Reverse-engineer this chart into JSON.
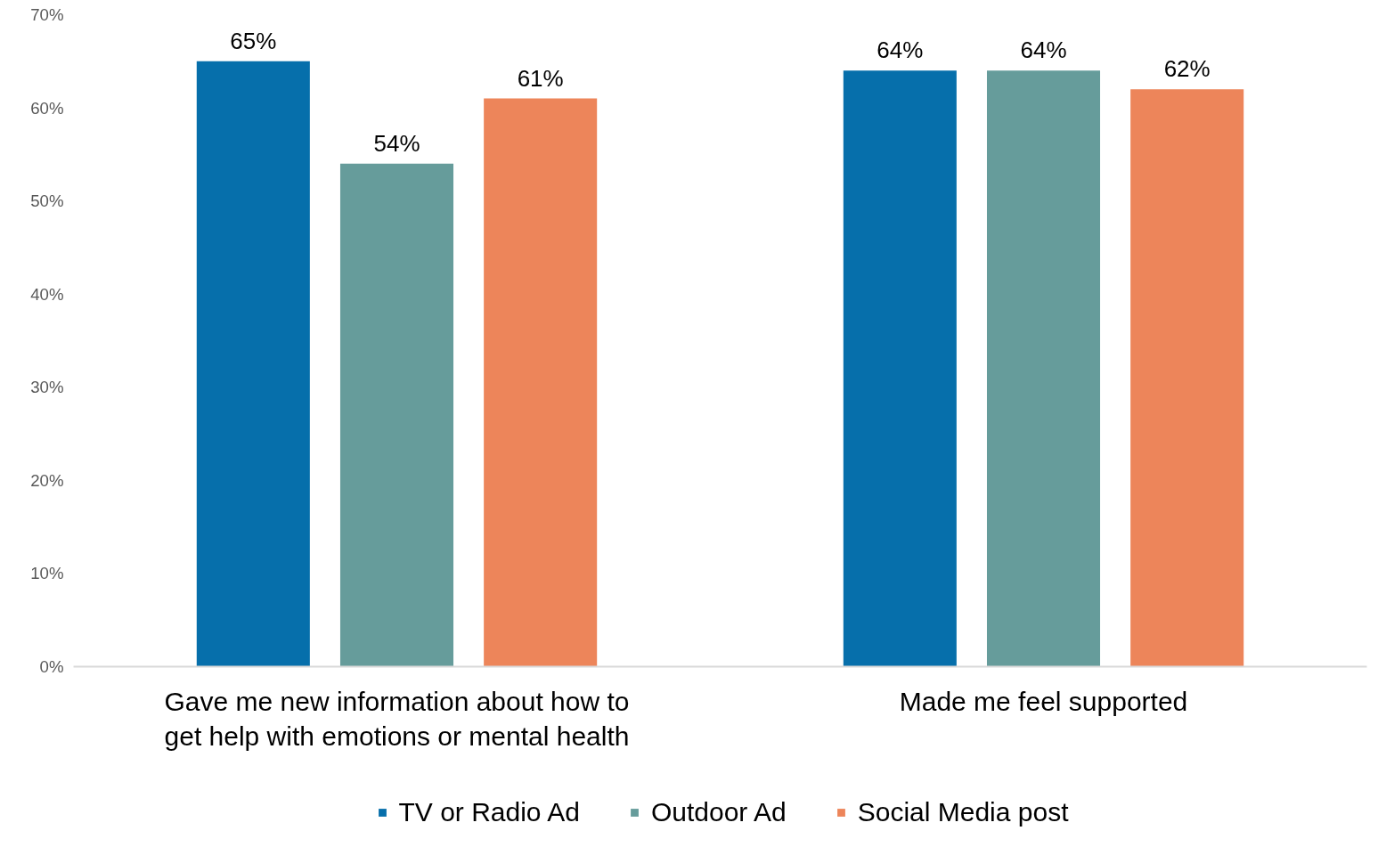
{
  "chart_data": {
    "type": "bar",
    "categories": [
      "Gave me new information about how to get help with emotions or mental health",
      "Made me feel supported"
    ],
    "series": [
      {
        "name": "TV or Radio Ad",
        "color": "#066fab",
        "values": [
          65,
          64
        ],
        "value_labels": [
          "65%",
          "64%"
        ]
      },
      {
        "name": "Outdoor Ad",
        "color": "#669c9b",
        "values": [
          54,
          64
        ],
        "value_labels": [
          "54%",
          "64%"
        ]
      },
      {
        "name": "Social Media post",
        "color": "#ed855a",
        "values": [
          61,
          62
        ],
        "value_labels": [
          "61%",
          "62%"
        ]
      }
    ],
    "ylim": [
      0,
      70
    ],
    "yticks": [
      {
        "value": 0,
        "label": "0%"
      },
      {
        "value": 10,
        "label": "10%"
      },
      {
        "value": 20,
        "label": "20%"
      },
      {
        "value": 30,
        "label": "30%"
      },
      {
        "value": 40,
        "label": "40%"
      },
      {
        "value": 50,
        "label": "50%"
      },
      {
        "value": 60,
        "label": "60%"
      },
      {
        "value": 70,
        "label": "70%"
      }
    ],
    "grid": false,
    "legend": "bottom"
  }
}
